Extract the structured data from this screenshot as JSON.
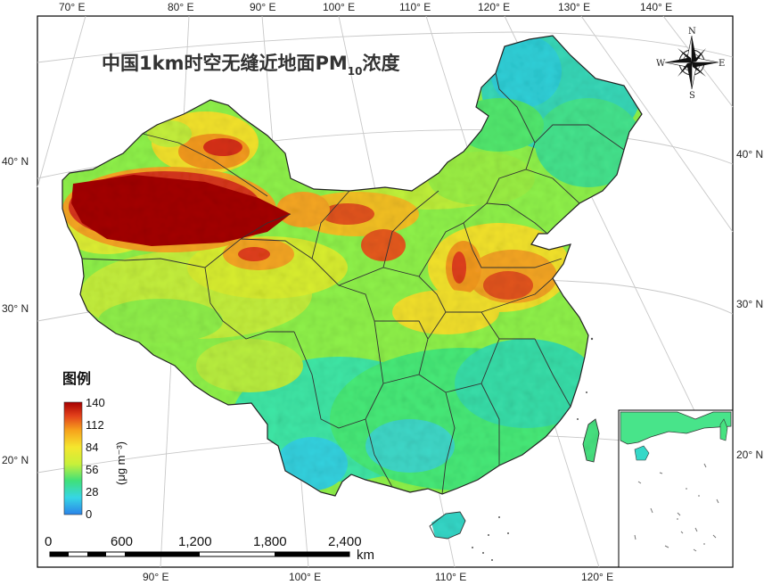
{
  "title": {
    "prefix": "中国1km时空无缝近地面PM",
    "subscript": "10",
    "suffix": "浓度"
  },
  "lon_labels_top": [
    "70° E",
    "80° E",
    "90° E",
    "100° E",
    "110° E",
    "120° E",
    "130° E",
    "140° E"
  ],
  "lon_labels_bottom": [
    "90° E",
    "100° E",
    "110° E",
    "120° E"
  ],
  "lat_labels_left": [
    "40° N",
    "30° N",
    "20° N"
  ],
  "lat_labels_right": [
    "40° N",
    "30° N",
    "20° N"
  ],
  "compass": {
    "n": "N",
    "s": "S",
    "e": "E",
    "w": "W"
  },
  "legend": {
    "title": "图例",
    "ticks": [
      "140",
      "112",
      "84",
      "56",
      "28",
      "0"
    ],
    "unit": "(μg m⁻³)",
    "min": 0,
    "max": 140,
    "colors": [
      "#2b83e8",
      "#36d6e6",
      "#3fe07a",
      "#c8f03a",
      "#f5e62e",
      "#f6a21c",
      "#e2401b",
      "#a60000"
    ]
  },
  "scalebar": {
    "ticks": [
      "0",
      "600",
      "1,200",
      "1,800",
      "2,400"
    ],
    "unit": "km"
  }
}
